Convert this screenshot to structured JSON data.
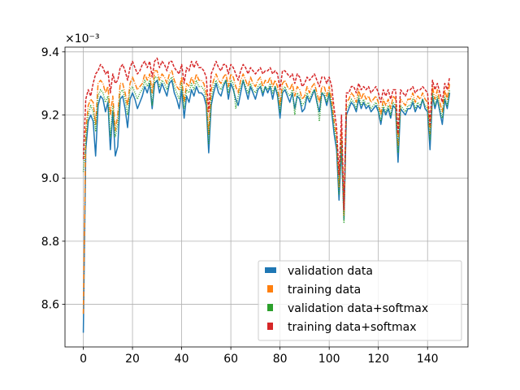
{
  "chart_data": {
    "type": "line",
    "title": "",
    "xlabel": "",
    "ylabel": "",
    "y_offset_label": "×10⁻³",
    "y_scale_factor": 0.001,
    "xlim": [
      -7.45,
      156.45
    ],
    "ylim": [
      8.465,
      9.415
    ],
    "xticks": [
      0,
      20,
      40,
      60,
      80,
      100,
      120,
      140
    ],
    "yticks": [
      8.6,
      8.8,
      9.0,
      9.2,
      9.4
    ],
    "xtick_labels": [
      "0",
      "20",
      "40",
      "60",
      "80",
      "100",
      "120",
      "140"
    ],
    "ytick_labels": [
      "8.6",
      "8.8",
      "9.0",
      "9.2",
      "9.4"
    ],
    "grid": true,
    "legend_position": "lower-right",
    "series": [
      {
        "name": "validation data",
        "color": "#1f77b4",
        "linestyle": "solid",
        "x": [
          0,
          1,
          2,
          3,
          4,
          5,
          6,
          7,
          8,
          9,
          10,
          11,
          12,
          13,
          14,
          15,
          16,
          17,
          18,
          19,
          20,
          21,
          22,
          23,
          24,
          25,
          26,
          27,
          28,
          29,
          30,
          31,
          32,
          33,
          34,
          35,
          36,
          37,
          38,
          39,
          40,
          41,
          42,
          43,
          44,
          45,
          46,
          47,
          48,
          49,
          50,
          51,
          52,
          53,
          54,
          55,
          56,
          57,
          58,
          59,
          60,
          61,
          62,
          63,
          64,
          65,
          66,
          67,
          68,
          69,
          70,
          71,
          72,
          73,
          74,
          75,
          76,
          77,
          78,
          79,
          80,
          81,
          82,
          83,
          84,
          85,
          86,
          87,
          88,
          89,
          90,
          91,
          92,
          93,
          94,
          95,
          96,
          97,
          98,
          99,
          100,
          101,
          102,
          103,
          104,
          105,
          106,
          107,
          108,
          109,
          110,
          111,
          112,
          113,
          114,
          115,
          116,
          117,
          118,
          119,
          120,
          121,
          122,
          123,
          124,
          125,
          126,
          127,
          128,
          129,
          130,
          131,
          132,
          133,
          134,
          135,
          136,
          137,
          138,
          139,
          140,
          141,
          142,
          143,
          144,
          145,
          146,
          147,
          148,
          149
        ],
        "y": [
          8.51,
          9.09,
          9.18,
          9.2,
          9.18,
          9.07,
          9.23,
          9.26,
          9.25,
          9.21,
          9.24,
          9.09,
          9.21,
          9.07,
          9.1,
          9.25,
          9.26,
          9.22,
          9.16,
          9.25,
          9.27,
          9.25,
          9.22,
          9.24,
          9.26,
          9.29,
          9.27,
          9.3,
          9.22,
          9.3,
          9.31,
          9.27,
          9.3,
          9.28,
          9.26,
          9.3,
          9.31,
          9.27,
          9.25,
          9.22,
          9.28,
          9.19,
          9.26,
          9.24,
          9.28,
          9.26,
          9.29,
          9.27,
          9.27,
          9.26,
          9.23,
          9.08,
          9.23,
          9.27,
          9.3,
          9.27,
          9.26,
          9.29,
          9.31,
          9.25,
          9.3,
          9.28,
          9.25,
          9.23,
          9.27,
          9.31,
          9.28,
          9.25,
          9.29,
          9.27,
          9.25,
          9.28,
          9.29,
          9.26,
          9.29,
          9.27,
          9.29,
          9.25,
          9.29,
          9.26,
          9.19,
          9.27,
          9.28,
          9.26,
          9.24,
          9.27,
          9.22,
          9.26,
          9.25,
          9.21,
          9.22,
          9.26,
          9.24,
          9.26,
          9.28,
          9.24,
          9.21,
          9.27,
          9.26,
          9.23,
          9.27,
          9.21,
          9.14,
          9.09,
          8.93,
          9.1,
          8.87,
          9.2,
          9.22,
          9.24,
          9.23,
          9.21,
          9.25,
          9.22,
          9.24,
          9.22,
          9.23,
          9.21,
          9.22,
          9.23,
          9.21,
          9.17,
          9.22,
          9.2,
          9.22,
          9.19,
          9.23,
          9.22,
          9.05,
          9.22,
          9.21,
          9.2,
          9.22,
          9.22,
          9.24,
          9.21,
          9.23,
          9.22,
          9.25,
          9.22,
          9.21,
          9.09,
          9.26,
          9.22,
          9.25,
          9.21,
          9.17,
          9.25,
          9.22,
          9.27
        ]
      },
      {
        "name": "training data",
        "color": "#ff7f0e",
        "linestyle": "dashdot",
        "x": [
          0,
          1,
          2,
          3,
          4,
          5,
          6,
          7,
          8,
          9,
          10,
          11,
          12,
          13,
          14,
          15,
          16,
          17,
          18,
          19,
          20,
          21,
          22,
          23,
          24,
          25,
          26,
          27,
          28,
          29,
          30,
          31,
          32,
          33,
          34,
          35,
          36,
          37,
          38,
          39,
          40,
          41,
          42,
          43,
          44,
          45,
          46,
          47,
          48,
          49,
          50,
          51,
          52,
          53,
          54,
          55,
          56,
          57,
          58,
          59,
          60,
          61,
          62,
          63,
          64,
          65,
          66,
          67,
          68,
          69,
          70,
          71,
          72,
          73,
          74,
          75,
          76,
          77,
          78,
          79,
          80,
          81,
          82,
          83,
          84,
          85,
          86,
          87,
          88,
          89,
          90,
          91,
          92,
          93,
          94,
          95,
          96,
          97,
          98,
          99,
          100,
          101,
          102,
          103,
          104,
          105,
          106,
          107,
          108,
          109,
          110,
          111,
          112,
          113,
          114,
          115,
          116,
          117,
          118,
          119,
          120,
          121,
          122,
          123,
          124,
          125,
          126,
          127,
          128,
          129,
          130,
          131,
          132,
          133,
          134,
          135,
          136,
          137,
          138,
          139,
          140,
          141,
          142,
          143,
          144,
          145,
          146,
          147,
          148,
          149
        ],
        "y": [
          8.57,
          9.15,
          9.23,
          9.25,
          9.24,
          9.17,
          9.3,
          9.31,
          9.3,
          9.27,
          9.29,
          9.2,
          9.26,
          9.15,
          9.2,
          9.3,
          9.3,
          9.27,
          9.23,
          9.3,
          9.32,
          9.3,
          9.28,
          9.29,
          9.3,
          9.33,
          9.31,
          9.33,
          9.27,
          9.34,
          9.34,
          9.31,
          9.33,
          9.32,
          9.3,
          9.33,
          9.34,
          9.31,
          9.29,
          9.28,
          9.32,
          9.24,
          9.3,
          9.29,
          9.32,
          9.3,
          9.33,
          9.31,
          9.31,
          9.3,
          9.27,
          9.14,
          9.28,
          9.31,
          9.33,
          9.31,
          9.3,
          9.32,
          9.33,
          9.29,
          9.33,
          9.32,
          9.29,
          9.27,
          9.31,
          9.33,
          9.31,
          9.29,
          9.32,
          9.3,
          9.29,
          9.31,
          9.32,
          9.29,
          9.31,
          9.3,
          9.32,
          9.29,
          9.31,
          9.29,
          9.23,
          9.3,
          9.31,
          9.29,
          9.28,
          9.3,
          9.26,
          9.29,
          9.28,
          9.25,
          9.26,
          9.29,
          9.27,
          9.29,
          9.3,
          9.27,
          9.24,
          9.29,
          9.29,
          9.26,
          9.29,
          9.25,
          9.18,
          9.13,
          8.97,
          9.15,
          8.88,
          9.24,
          9.25,
          9.27,
          9.26,
          9.24,
          9.28,
          9.25,
          9.27,
          9.25,
          9.26,
          9.24,
          9.25,
          9.26,
          9.24,
          9.2,
          9.25,
          9.23,
          9.25,
          9.22,
          9.26,
          9.25,
          9.1,
          9.25,
          9.24,
          9.23,
          9.25,
          9.25,
          9.27,
          9.24,
          9.26,
          9.25,
          9.27,
          9.25,
          9.24,
          9.14,
          9.29,
          9.25,
          9.28,
          9.24,
          9.21,
          9.28,
          9.25,
          9.3
        ]
      },
      {
        "name": "validation data+softmax",
        "color": "#2ca02c",
        "linestyle": "dotted",
        "x": [
          0,
          1,
          2,
          3,
          4,
          5,
          6,
          7,
          8,
          9,
          10,
          11,
          12,
          13,
          14,
          15,
          16,
          17,
          18,
          19,
          20,
          21,
          22,
          23,
          24,
          25,
          26,
          27,
          28,
          29,
          30,
          31,
          32,
          33,
          34,
          35,
          36,
          37,
          38,
          39,
          40,
          41,
          42,
          43,
          44,
          45,
          46,
          47,
          48,
          49,
          50,
          51,
          52,
          53,
          54,
          55,
          56,
          57,
          58,
          59,
          60,
          61,
          62,
          63,
          64,
          65,
          66,
          67,
          68,
          69,
          70,
          71,
          72,
          73,
          74,
          75,
          76,
          77,
          78,
          79,
          80,
          81,
          82,
          83,
          84,
          85,
          86,
          87,
          88,
          89,
          90,
          91,
          92,
          93,
          94,
          95,
          96,
          97,
          98,
          99,
          100,
          101,
          102,
          103,
          104,
          105,
          106,
          107,
          108,
          109,
          110,
          111,
          112,
          113,
          114,
          115,
          116,
          117,
          118,
          119,
          120,
          121,
          122,
          123,
          124,
          125,
          126,
          127,
          128,
          129,
          130,
          131,
          132,
          133,
          134,
          135,
          136,
          137,
          138,
          139,
          140,
          141,
          142,
          143,
          144,
          145,
          146,
          147,
          148,
          149
        ],
        "y": [
          9.02,
          9.12,
          9.2,
          9.23,
          9.21,
          9.15,
          9.26,
          9.28,
          9.27,
          9.24,
          9.26,
          9.13,
          9.23,
          9.13,
          9.17,
          9.27,
          9.28,
          9.25,
          9.2,
          9.28,
          9.29,
          9.27,
          9.25,
          9.27,
          9.28,
          9.31,
          9.29,
          9.31,
          9.23,
          9.32,
          9.32,
          9.29,
          9.31,
          9.3,
          9.28,
          9.31,
          9.32,
          9.29,
          9.27,
          9.25,
          9.3,
          9.22,
          9.28,
          9.27,
          9.3,
          9.28,
          9.31,
          9.29,
          9.29,
          9.28,
          9.25,
          9.11,
          9.25,
          9.29,
          9.31,
          9.29,
          9.28,
          9.3,
          9.31,
          9.27,
          9.31,
          9.3,
          9.22,
          9.26,
          9.29,
          9.31,
          9.29,
          9.27,
          9.3,
          9.28,
          9.27,
          9.29,
          9.3,
          9.27,
          9.29,
          9.28,
          9.3,
          9.27,
          9.29,
          9.27,
          9.21,
          9.28,
          9.29,
          9.27,
          9.26,
          9.28,
          9.2,
          9.27,
          9.26,
          9.23,
          9.24,
          9.27,
          9.25,
          9.27,
          9.28,
          9.25,
          9.18,
          9.27,
          9.27,
          9.24,
          9.27,
          9.23,
          9.16,
          9.11,
          8.95,
          9.12,
          8.86,
          9.22,
          9.23,
          9.25,
          9.24,
          9.22,
          9.26,
          9.23,
          9.25,
          9.23,
          9.24,
          9.22,
          9.23,
          9.24,
          9.22,
          9.18,
          9.23,
          9.21,
          9.23,
          9.2,
          9.24,
          9.23,
          9.08,
          9.23,
          9.22,
          9.21,
          9.23,
          9.23,
          9.25,
          9.22,
          9.24,
          9.23,
          9.25,
          9.23,
          9.22,
          9.12,
          9.27,
          9.23,
          9.26,
          9.22,
          9.19,
          9.26,
          9.23,
          9.28
        ]
      },
      {
        "name": "training data+softmax",
        "color": "#d62728",
        "linestyle": "dashed",
        "x": [
          0,
          1,
          2,
          3,
          4,
          5,
          6,
          7,
          8,
          9,
          10,
          11,
          12,
          13,
          14,
          15,
          16,
          17,
          18,
          19,
          20,
          21,
          22,
          23,
          24,
          25,
          26,
          27,
          28,
          29,
          30,
          31,
          32,
          33,
          34,
          35,
          36,
          37,
          38,
          39,
          40,
          41,
          42,
          43,
          44,
          45,
          46,
          47,
          48,
          49,
          50,
          51,
          52,
          53,
          54,
          55,
          56,
          57,
          58,
          59,
          60,
          61,
          62,
          63,
          64,
          65,
          66,
          67,
          68,
          69,
          70,
          71,
          72,
          73,
          74,
          75,
          76,
          77,
          78,
          79,
          80,
          81,
          82,
          83,
          84,
          85,
          86,
          87,
          88,
          89,
          90,
          91,
          92,
          93,
          94,
          95,
          96,
          97,
          98,
          99,
          100,
          101,
          102,
          103,
          104,
          105,
          106,
          107,
          108,
          109,
          110,
          111,
          112,
          113,
          114,
          115,
          116,
          117,
          118,
          119,
          120,
          121,
          122,
          123,
          124,
          125,
          126,
          127,
          128,
          129,
          130,
          131,
          132,
          133,
          134,
          135,
          136,
          137,
          138,
          139,
          140,
          141,
          142,
          143,
          144,
          145,
          146,
          147,
          148,
          149
        ],
        "y": [
          9.06,
          9.25,
          9.28,
          9.26,
          9.3,
          9.33,
          9.34,
          9.36,
          9.35,
          9.33,
          9.34,
          9.27,
          9.33,
          9.3,
          9.31,
          9.35,
          9.36,
          9.34,
          9.31,
          9.35,
          9.37,
          9.35,
          9.33,
          9.34,
          9.36,
          9.37,
          9.35,
          9.37,
          9.32,
          9.37,
          9.38,
          9.35,
          9.37,
          9.36,
          9.34,
          9.37,
          9.37,
          9.35,
          9.34,
          9.33,
          9.36,
          9.3,
          9.35,
          9.34,
          9.37,
          9.35,
          9.37,
          9.35,
          9.35,
          9.34,
          9.32,
          9.21,
          9.33,
          9.35,
          9.37,
          9.35,
          9.34,
          9.36,
          9.36,
          9.33,
          9.36,
          9.35,
          9.33,
          9.31,
          9.34,
          9.36,
          9.35,
          9.33,
          9.35,
          9.34,
          9.33,
          9.34,
          9.35,
          9.33,
          9.34,
          9.34,
          9.35,
          9.33,
          9.34,
          9.33,
          9.28,
          9.34,
          9.34,
          9.33,
          9.32,
          9.33,
          9.3,
          9.33,
          9.32,
          9.29,
          9.3,
          9.32,
          9.31,
          9.32,
          9.33,
          9.31,
          9.29,
          9.32,
          9.32,
          9.3,
          9.32,
          9.29,
          9.22,
          9.16,
          9.01,
          9.2,
          8.9,
          9.27,
          9.27,
          9.29,
          9.29,
          9.27,
          9.3,
          9.28,
          9.29,
          9.28,
          9.29,
          9.27,
          9.28,
          9.29,
          9.27,
          9.24,
          9.28,
          9.26,
          9.28,
          9.25,
          9.28,
          9.28,
          9.14,
          9.28,
          9.27,
          9.26,
          9.28,
          9.28,
          9.29,
          9.27,
          9.28,
          9.28,
          9.29,
          9.28,
          9.27,
          9.17,
          9.31,
          9.28,
          9.3,
          9.27,
          9.24,
          9.3,
          9.28,
          9.32
        ]
      }
    ]
  }
}
